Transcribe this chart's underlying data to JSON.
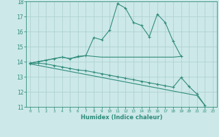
{
  "xlabel": "Humidex (Indice chaleur)",
  "x_values": [
    0,
    1,
    2,
    3,
    4,
    5,
    6,
    7,
    8,
    9,
    10,
    11,
    12,
    13,
    14,
    15,
    16,
    17,
    18,
    19,
    20,
    21,
    22,
    23
  ],
  "line1": [
    13.9,
    14.0,
    14.1,
    14.2,
    14.3,
    14.2,
    14.35,
    14.4,
    15.6,
    15.45,
    16.1,
    17.85,
    17.55,
    16.6,
    16.4,
    15.65,
    17.15,
    16.6,
    15.35,
    14.35,
    null,
    null,
    null,
    null
  ],
  "line2": [
    13.9,
    14.0,
    14.1,
    14.2,
    14.3,
    14.2,
    14.3,
    14.4,
    14.35,
    14.3,
    14.3,
    14.3,
    14.3,
    14.3,
    14.3,
    14.3,
    14.3,
    14.3,
    14.3,
    14.35,
    null,
    null,
    null,
    null
  ],
  "line3": [
    13.85,
    13.9,
    13.85,
    13.75,
    13.65,
    13.55,
    13.45,
    13.4,
    13.3,
    13.2,
    13.1,
    13.0,
    12.9,
    12.8,
    12.7,
    12.6,
    12.5,
    12.4,
    12.3,
    12.95,
    12.35,
    11.85,
    11.1,
    null
  ],
  "line4": [
    13.85,
    13.75,
    13.65,
    13.55,
    13.45,
    13.35,
    13.25,
    13.15,
    13.05,
    12.95,
    12.85,
    12.75,
    12.65,
    12.55,
    12.45,
    12.35,
    12.25,
    12.15,
    12.05,
    11.95,
    11.85,
    11.75,
    11.1,
    null
  ],
  "ylim": [
    11,
    18
  ],
  "xlim": [
    -0.5,
    23.5
  ],
  "yticks": [
    11,
    12,
    13,
    14,
    15,
    16,
    17,
    18
  ],
  "xticks": [
    0,
    1,
    2,
    3,
    4,
    5,
    6,
    7,
    8,
    9,
    10,
    11,
    12,
    13,
    14,
    15,
    16,
    17,
    18,
    19,
    20,
    21,
    22,
    23
  ],
  "line_color": "#2e8b7a",
  "bg_color": "#cce8e8",
  "grid_color": "#aacece"
}
